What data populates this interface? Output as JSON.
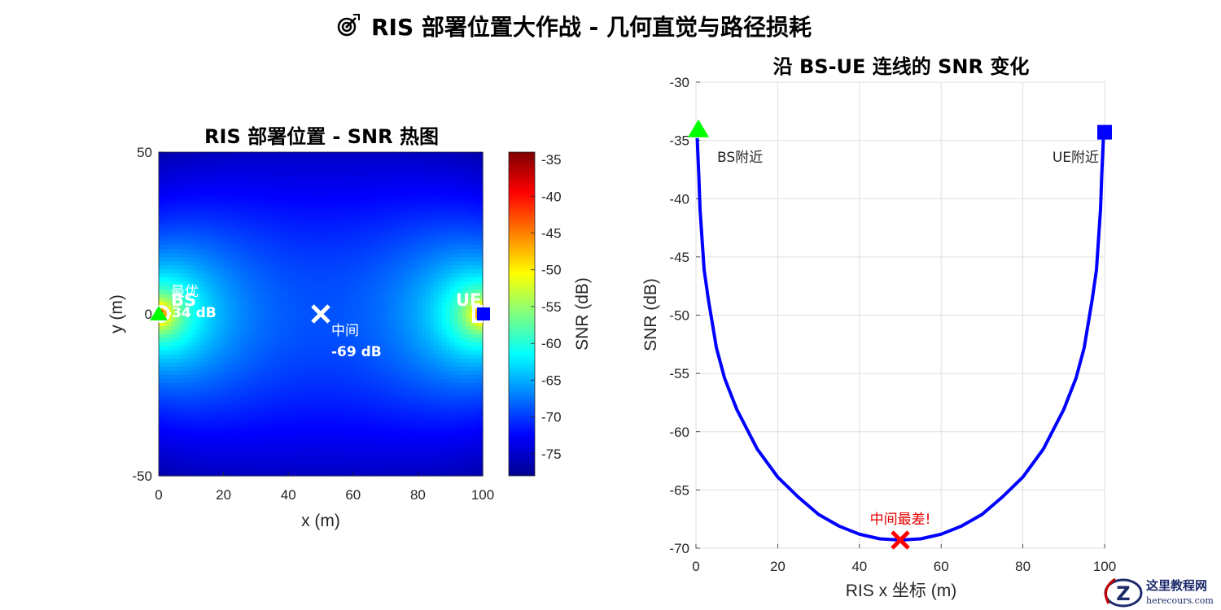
{
  "figure": {
    "suptitle_icon": "direct-hit-target-icon",
    "suptitle": "RIS 部署位置大作战 - 几何直觉与路径损耗"
  },
  "colors": {
    "bs_marker": "#00ff00",
    "ue_marker": "#0000ff",
    "worst_marker": "#ff0000",
    "curve": "#0000ff",
    "annotation_white": "#ffffff",
    "annotation_red": "#e60000"
  },
  "chart_data": [
    {
      "type": "heatmap",
      "title": "RIS 部署位置 - SNR 热图",
      "xlabel": "x (m)",
      "ylabel": "y (m)",
      "xlim": [
        0,
        100
      ],
      "ylim": [
        -50,
        50
      ],
      "xticks": [
        0,
        20,
        40,
        60,
        80,
        100
      ],
      "yticks": [
        -50,
        0,
        50
      ],
      "colormap": "jet",
      "colorbar": {
        "label": "SNR (dB)",
        "clim": [
          -78,
          -34
        ],
        "ticks": [
          -35,
          -40,
          -45,
          -50,
          -55,
          -60,
          -65,
          -70,
          -75
        ]
      },
      "model": {
        "bs": [
          0,
          0
        ],
        "ue": [
          100,
          0
        ],
        "best_snr": -34,
        "center_snr": -69
      },
      "markers": [
        {
          "name": "BS",
          "label": "BS",
          "x": 0,
          "y": 0,
          "shape": "triangle"
        },
        {
          "name": "UE",
          "label": "UE",
          "x": 100,
          "y": 0,
          "shape": "square"
        },
        {
          "name": "middle",
          "x": 50,
          "y": 0,
          "shape": "x"
        },
        {
          "name": "optimal",
          "x": 0,
          "y": 0,
          "shape": "circle"
        }
      ],
      "annotations": {
        "best_label": "最优",
        "best_value": "-34 dB",
        "middle_label": "中间",
        "middle_value": "-69 dB"
      }
    },
    {
      "type": "line",
      "title": "沿 BS-UE 连线的 SNR 变化",
      "xlabel": "RIS x 坐标 (m)",
      "ylabel": "SNR (dB)",
      "xlim": [
        0,
        100
      ],
      "ylim": [
        -70,
        -30
      ],
      "xticks": [
        0,
        20,
        40,
        60,
        80,
        100
      ],
      "yticks": [
        -30,
        -35,
        -40,
        -45,
        -50,
        -55,
        -60,
        -65,
        -70
      ],
      "grid": true,
      "series": [
        {
          "x": [
            0.3,
            0.7,
            1,
            2,
            3,
            5,
            7,
            10,
            15,
            20,
            25,
            30,
            35,
            40,
            45,
            50,
            55,
            60,
            65,
            70,
            75,
            80,
            85,
            90,
            93,
            95,
            97,
            98,
            99,
            99.3,
            99.7
          ],
          "values": [
            -34.8,
            -38,
            -40.9,
            -46.1,
            -48.6,
            -52.8,
            -55.4,
            -58.1,
            -61.5,
            -63.9,
            -65.6,
            -67.1,
            -68.1,
            -68.8,
            -69.2,
            -69.3,
            -69.2,
            -68.8,
            -68.1,
            -67.1,
            -65.6,
            -63.9,
            -61.5,
            -58.1,
            -55.4,
            -52.8,
            -48.6,
            -46.1,
            -40.9,
            -38,
            -34.8
          ]
        }
      ],
      "markers": [
        {
          "name": "BS",
          "x": 0,
          "y": -34.1,
          "shape": "triangle",
          "label": "BS附近"
        },
        {
          "name": "UE",
          "x": 100,
          "y": -34.3,
          "shape": "square",
          "label": "UE附近"
        },
        {
          "name": "worst",
          "x": 50,
          "y": -69.3,
          "shape": "x",
          "label": "中间最差!"
        }
      ]
    }
  ],
  "watermark": {
    "logo_letter": "Z",
    "cn": "这里教程网",
    "en": "herecours.com"
  }
}
